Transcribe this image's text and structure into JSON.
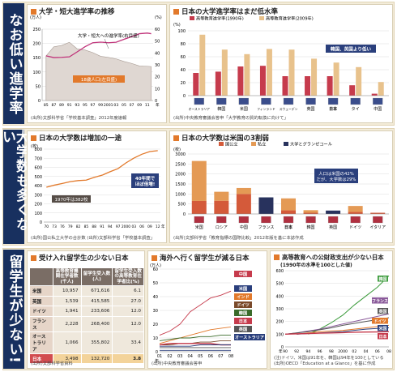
{
  "sidebars": [
    "なお低い進学率",
    "大学数も多くない",
    "留学生が少ない!"
  ],
  "p1": {
    "title": "大学・短大進学率の推移",
    "y_left_unit": "(万人)",
    "y_right_unit": "(%)",
    "source": "(出所)文部科学省「学校基本調査」2012年度速報",
    "left_ticks": [
      "250",
      "200",
      "150",
      "100",
      "50",
      "0"
    ],
    "right_ticks": [
      "60",
      "50",
      "40",
      "30",
      "20",
      "10",
      "0"
    ],
    "x_ticks": [
      "85",
      "87",
      "89",
      "91",
      "93",
      "95",
      "97",
      "99",
      "2001",
      "03",
      "05",
      "07",
      "09",
      "11"
    ],
    "x_unit": "年",
    "annot_rate": "大学・短大への進学率(右目盛)",
    "annot_pop": "18歳人口(左目盛)"
  },
  "p2": {
    "title": "日本の大学進学率はまだ低水準",
    "legend": [
      "高等教育進学率(1990年)",
      "高等教育進学率(2009年)"
    ],
    "callout": "韓国、英国より低い",
    "y_unit": "(%)",
    "y_ticks": [
      "100",
      "80",
      "60",
      "40",
      "20",
      "0"
    ],
    "source": "(出所)中央教育審議会答申「大学教育の質的転換に向けて」"
  },
  "p3": {
    "title": "日本の大学数は増加の一途",
    "y_unit": "(校)",
    "y_ticks": [
      "800",
      "700",
      "600",
      "500",
      "400",
      "300",
      "200",
      "100",
      "0"
    ],
    "x_ticks": [
      "70",
      "73",
      "76",
      "79",
      "82",
      "85",
      "88",
      "91",
      "94",
      "97",
      "2000",
      "03",
      "06",
      "09",
      "12"
    ],
    "x_unit": "年",
    "call1": "1970年は382校",
    "call2a": "40年間で",
    "call2b": "ほぼ倍増!",
    "source": "(出所)国公私立大学の合計数  (出所)文部科学省「学校基本調査」"
  },
  "p4": {
    "title": "日本の大学数は米国の3割弱",
    "legend": [
      "国公立",
      "私立",
      "大学とグランゼコール"
    ],
    "callout_a": "人口は米国の42%",
    "callout_b": "だが、大学数は29%",
    "y_unit": "(校)",
    "y_ticks": [
      "3000",
      "2500",
      "2000",
      "1500",
      "1000",
      "500",
      "0"
    ],
    "source": "(出所)文部科学省「教育指標の国際比較」2012年版を基に本誌作成"
  },
  "p5": {
    "title": "受け入れ留学生の少ない日本",
    "source": "(出所)文部科学省資料",
    "headers": [
      "",
      "高等教育機関在学者数(千人)",
      "留学生受入数(人)",
      "留学生受入数の高等教育在学者比(%)"
    ],
    "rows": [
      [
        "米国",
        "10,957",
        "671,616",
        "6.1"
      ],
      [
        "英国",
        "1,539",
        "415,585",
        "27.0"
      ],
      [
        "ドイツ",
        "1,941",
        "233,606",
        "12.0"
      ],
      [
        "フランス",
        "2,228",
        "268,400",
        "12.0"
      ],
      [
        "オーストラリア",
        "1,066",
        "355,802",
        "33.4"
      ],
      [
        "日本",
        "3,498",
        "132,720",
        "3.8"
      ]
    ]
  },
  "p6": {
    "title": "海外へ行く留学生が減る日本",
    "y_unit": "(万人)",
    "y_ticks": [
      "60",
      "50",
      "40",
      "30",
      "20",
      "10",
      "0"
    ],
    "x_ticks": [
      "01",
      "02",
      "03",
      "04",
      "05",
      "06",
      "07",
      "08"
    ],
    "x_unit": "年",
    "source": "(出所)中央教育審議会答申"
  },
  "p7": {
    "title": "高等教育への公財政支出が少ない日本",
    "subtitle": "(1990年の水準を100とした値)",
    "y_ticks": [
      "600",
      "500",
      "400",
      "300",
      "200",
      "100",
      "0"
    ],
    "x_ticks": [
      "90",
      "92",
      "94",
      "96",
      "98",
      "2000",
      "02",
      "04",
      "06",
      "08"
    ],
    "x_unit": "年",
    "note": "(注)ドイツ、米国は91年を、韓国は94年を100としている",
    "source": "(出所)OECD「Education at a Glance」を基に作成"
  },
  "chart_data": [
    {
      "type": "line",
      "title": "大学・短大進学率の推移",
      "x": [
        1985,
        1987,
        1989,
        1991,
        1993,
        1995,
        1997,
        1999,
        2001,
        2003,
        2005,
        2007,
        2009,
        2011,
        2012
      ],
      "series": [
        {
          "name": "大学・短大への進学率(右目盛)",
          "axis": "right",
          "unit": "%",
          "values": [
            37.6,
            36.1,
            36.3,
            36.7,
            40.9,
            45.2,
            48.6,
            49.1,
            48.6,
            49.0,
            51.5,
            53.7,
            56.2,
            56.7,
            56.2
          ]
        },
        {
          "name": "18歳人口(左目盛)",
          "axis": "left",
          "unit": "万人",
          "values": [
            156,
            188,
            193,
            204,
            181,
            177,
            168,
            155,
            151,
            146,
            137,
            130,
            121,
            120,
            119
          ]
        }
      ],
      "ylim_left": [
        0,
        250
      ],
      "ylim_right": [
        0,
        60
      ]
    },
    {
      "type": "bar",
      "title": "日本の大学進学率はまだ低水準",
      "unit": "%",
      "categories": [
        "オーストラリア",
        "韓国",
        "米国",
        "フィンランド",
        "スウェーデン",
        "英国",
        "日本",
        "タイ",
        "中国"
      ],
      "series": [
        {
          "name": "高等教育進学率(1990年)",
          "values": [
            35,
            37,
            45,
            46,
            30,
            30,
            30,
            16,
            3
          ]
        },
        {
          "name": "高等教育進学率(2009年)",
          "values": [
            94,
            71,
            64,
            72,
            71,
            57,
            51,
            44,
            21
          ]
        }
      ],
      "ylim": [
        0,
        100
      ]
    },
    {
      "type": "line",
      "title": "日本の大学数は増加の一途",
      "unit": "校",
      "x": [
        1970,
        1973,
        1976,
        1979,
        1982,
        1985,
        1988,
        1991,
        1994,
        1997,
        2000,
        2003,
        2006,
        2009,
        2012
      ],
      "series": [
        {
          "name": "大学数",
          "values": [
            382,
            405,
            423,
            443,
            455,
            460,
            490,
            514,
            552,
            586,
            649,
            702,
            744,
            773,
            783
          ]
        }
      ],
      "ylim": [
        0,
        800
      ]
    },
    {
      "type": "bar",
      "stacked": true,
      "title": "日本の大学数は米国の3割弱",
      "unit": "校",
      "categories": [
        "米国",
        "ロシア",
        "中国",
        "フランス",
        "日本",
        "韓国",
        "英国",
        "ドイツ",
        "イタリア"
      ],
      "series": [
        {
          "name": "国公立",
          "values": [
            650,
            660,
            1000,
            0,
            180,
            60,
            0,
            100,
            60
          ]
        },
        {
          "name": "私立",
          "values": [
            2000,
            450,
            300,
            0,
            600,
            130,
            0,
            300,
            0
          ]
        },
        {
          "name": "大学とグランゼコール",
          "values": [
            0,
            0,
            0,
            830,
            0,
            0,
            170,
            0,
            0
          ]
        }
      ],
      "ylim": [
        0,
        3000
      ]
    },
    {
      "type": "table",
      "title": "受け入れ留学生の少ない日本",
      "columns": [
        "国",
        "高等教育機関在学者数(千人)",
        "留学生受入数(人)",
        "留学生受入数の高等教育在学者比(%)"
      ],
      "rows": [
        [
          "米国",
          10957,
          671616,
          6.1
        ],
        [
          "英国",
          1539,
          415585,
          27.0
        ],
        [
          "ドイツ",
          1941,
          233606,
          12.0
        ],
        [
          "フランス",
          2228,
          268400,
          12.0
        ],
        [
          "オーストラリア",
          1066,
          355802,
          33.4
        ],
        [
          "日本",
          3498,
          132720,
          3.8
        ]
      ]
    },
    {
      "type": "line",
      "title": "海外へ行く留学生が減る日本",
      "unit": "万人",
      "x": [
        2001,
        2002,
        2003,
        2004,
        2005,
        2006,
        2007,
        2008
      ],
      "series": [
        {
          "name": "中国",
          "values": [
            12,
            15,
            20,
            29,
            34,
            39,
            41,
            44
          ]
        },
        {
          "name": "インド",
          "values": [
            6,
            8,
            10,
            12,
            14,
            16,
            17,
            18
          ]
        },
        {
          "name": "韓国",
          "values": [
            8,
            9,
            10,
            10,
            11,
            11,
            12,
            12
          ]
        },
        {
          "name": "ドイツ",
          "values": [
            5,
            5,
            6,
            6,
            7,
            7,
            8,
            8
          ]
        },
        {
          "name": "日本",
          "values": [
            5,
            6,
            6,
            6,
            6,
            6,
            5,
            5
          ]
        },
        {
          "name": "英国",
          "values": [
            3,
            3,
            3,
            3,
            3,
            3,
            3,
            3
          ]
        },
        {
          "name": "米国",
          "values": [
            4,
            4,
            4,
            4,
            5,
            5,
            5,
            5
          ]
        },
        {
          "name": "オーストラリア",
          "values": [
            1,
            1,
            1,
            1,
            1,
            1,
            1,
            1
          ]
        }
      ],
      "ylim": [
        0,
        60
      ]
    },
    {
      "type": "line",
      "title": "高等教育への公財政支出が少ない日本",
      "x": [
        1990,
        1992,
        1994,
        1996,
        1998,
        2000,
        2002,
        2004,
        2006,
        2008
      ],
      "series": [
        {
          "name": "韓国",
          "values": [
            null,
            null,
            100,
            140,
            190,
            250,
            330,
            400,
            470,
            560
          ]
        },
        {
          "name": "フランス",
          "values": [
            100,
            110,
            125,
            140,
            160,
            180,
            200,
            220,
            240,
            260
          ]
        },
        {
          "name": "英国",
          "values": [
            100,
            110,
            120,
            135,
            150,
            170,
            185,
            200,
            215,
            230
          ]
        },
        {
          "name": "ドイツ",
          "values": [
            null,
            100,
            110,
            120,
            125,
            130,
            140,
            150,
            160,
            170
          ]
        },
        {
          "name": "米国",
          "values": [
            null,
            100,
            105,
            110,
            115,
            120,
            130,
            140,
            145,
            150
          ]
        },
        {
          "name": "日本",
          "values": [
            100,
            103,
            105,
            108,
            110,
            112,
            115,
            117,
            118,
            120
          ]
        }
      ],
      "ylim": [
        0,
        600
      ]
    }
  ]
}
